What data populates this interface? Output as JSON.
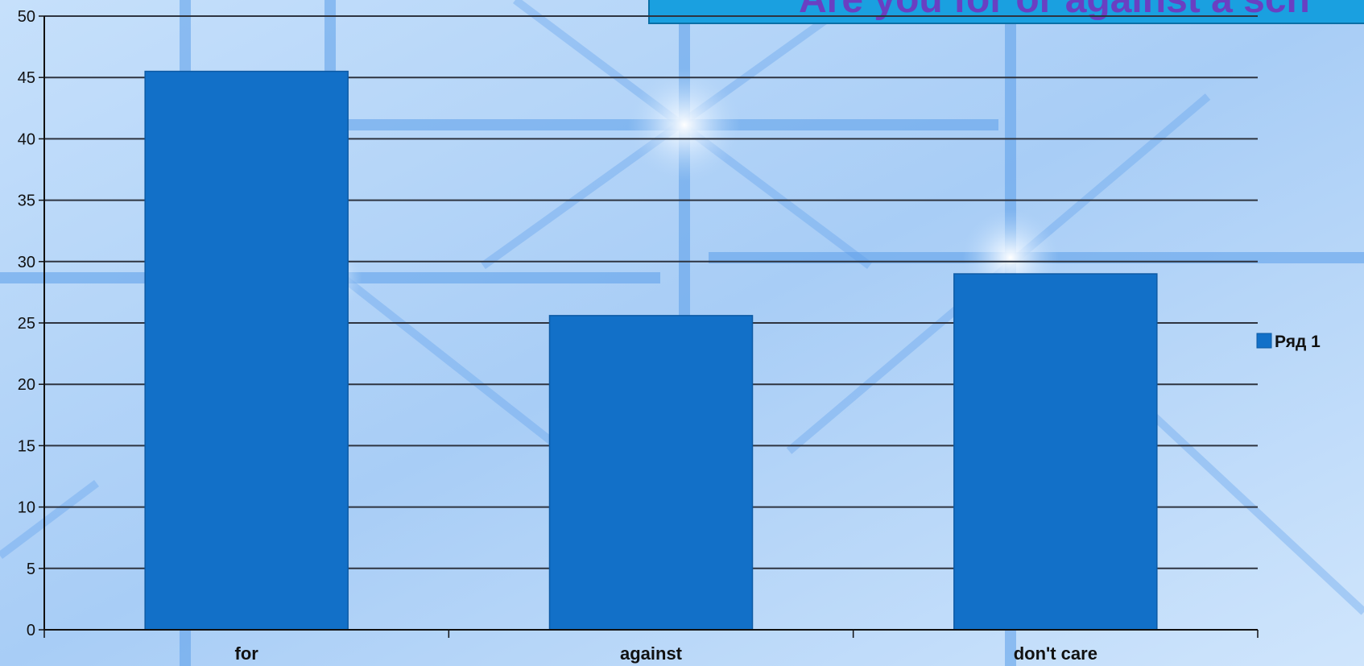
{
  "title": "Are you for or against a sch",
  "chart_data": {
    "type": "bar",
    "title": "Are you for or against a sch",
    "categories": [
      "for",
      "against",
      "don't care"
    ],
    "series": [
      {
        "name": "Ряд 1",
        "values": [
          45.5,
          25.6,
          29
        ]
      }
    ],
    "ylim": [
      0,
      50
    ],
    "yticks": [
      0,
      5,
      10,
      15,
      20,
      25,
      30,
      35,
      40,
      45,
      50
    ],
    "grid": true,
    "legend": "right",
    "colors": {
      "bar": "#1270c8",
      "grid": "#2e3440",
      "background": "#b9d8f8",
      "title_box": "#1aa0e0",
      "title_text": "#6a3fc2"
    }
  }
}
